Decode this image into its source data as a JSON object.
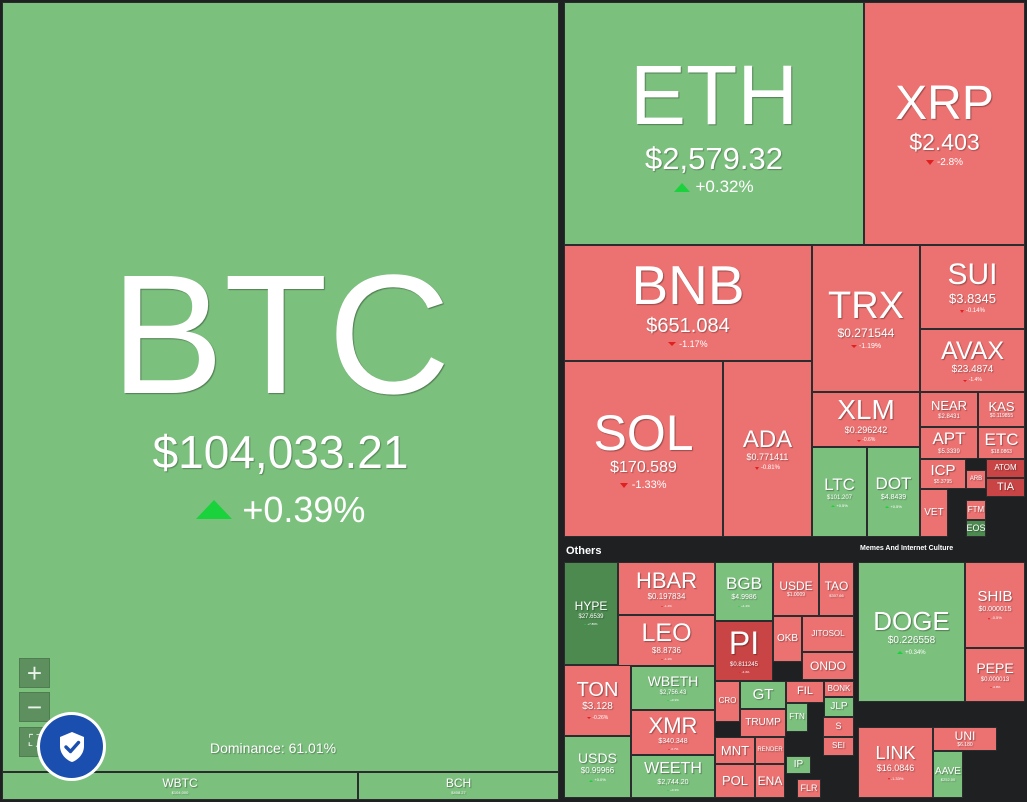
{
  "sections": {
    "others": "Others",
    "memes": "Memes And Internet Culture"
  },
  "dominance": "Dominance: 61.01%",
  "controls": {
    "zoom_in": "+",
    "zoom_out": "−",
    "fullscreen": "⛶"
  },
  "colors": {
    "up": "#7cc07e",
    "down": "#ec7171",
    "strong_up": "#4d8a50",
    "strong_down": "#c94444"
  },
  "tiles": [
    {
      "sym": "BTC",
      "price": "$104,033.21",
      "chg": "+0.39%",
      "dir": "up"
    },
    {
      "sym": "WBTC",
      "price": "$104,000",
      "chg": "",
      "dir": "up"
    },
    {
      "sym": "BCH",
      "price": "$408.27",
      "chg": "",
      "dir": "up"
    },
    {
      "sym": "ETH",
      "price": "$2,579.32",
      "chg": "+0.32%",
      "dir": "up"
    },
    {
      "sym": "XRP",
      "price": "$2.403",
      "chg": "-2.8%",
      "dir": "down"
    },
    {
      "sym": "BNB",
      "price": "$651.084",
      "chg": "-1.17%",
      "dir": "down"
    },
    {
      "sym": "TRX",
      "price": "$0.271544",
      "chg": "-1.19%",
      "dir": "down"
    },
    {
      "sym": "SUI",
      "price": "$3.8345",
      "chg": "-0.14%",
      "dir": "down"
    },
    {
      "sym": "AVAX",
      "price": "$23.4874",
      "chg": "-1.4%",
      "dir": "down"
    },
    {
      "sym": "SOL",
      "price": "$170.589",
      "chg": "-1.33%",
      "dir": "down"
    },
    {
      "sym": "ADA",
      "price": "$0.771411",
      "chg": "-0.81%",
      "dir": "down"
    },
    {
      "sym": "XLM",
      "price": "$0.296242",
      "chg": "-0.6%",
      "dir": "down"
    },
    {
      "sym": "NEAR",
      "price": "$2.8431",
      "chg": "",
      "dir": "down"
    },
    {
      "sym": "KAS",
      "price": "$0.119855",
      "chg": "",
      "dir": "down"
    },
    {
      "sym": "APT",
      "price": "$5.3339",
      "chg": "",
      "dir": "down"
    },
    {
      "sym": "ETC",
      "price": "$18.0863",
      "chg": "",
      "dir": "down"
    },
    {
      "sym": "LTC",
      "price": "$101.207",
      "chg": "+0.5%",
      "dir": "up"
    },
    {
      "sym": "DOT",
      "price": "$4.8439",
      "chg": "+0.5%",
      "dir": "up"
    },
    {
      "sym": "ICP",
      "price": "$5.3795",
      "chg": "",
      "dir": "down"
    },
    {
      "sym": "ARB",
      "price": "",
      "chg": "",
      "dir": "down"
    },
    {
      "sym": "ATOM",
      "price": "$4.8",
      "chg": "",
      "dir": "down"
    },
    {
      "sym": "TIA",
      "price": "",
      "chg": "",
      "dir": "down"
    },
    {
      "sym": "VET",
      "price": "",
      "chg": "",
      "dir": "down"
    },
    {
      "sym": "FTM",
      "price": "",
      "chg": "",
      "dir": "down"
    },
    {
      "sym": "EOS",
      "price": "",
      "chg": "",
      "dir": "up"
    },
    {
      "sym": "HYPE",
      "price": "$27.6539",
      "chg": "+7.86%",
      "dir": "up"
    },
    {
      "sym": "HBAR",
      "price": "$0.197834",
      "chg": "-1.4%",
      "dir": "down"
    },
    {
      "sym": "BGB",
      "price": "$4.9986",
      "chg": "+1.4%",
      "dir": "up"
    },
    {
      "sym": "USDE",
      "price": "$1.0009",
      "chg": "",
      "dir": "down"
    },
    {
      "sym": "TAO",
      "price": "$307.66",
      "chg": "",
      "dir": "down"
    },
    {
      "sym": "LEO",
      "price": "$8.8736",
      "chg": "-1.1%",
      "dir": "down"
    },
    {
      "sym": "PI",
      "price": "$0.811245",
      "chg": "-4.4%",
      "dir": "down"
    },
    {
      "sym": "OKB",
      "price": "",
      "chg": "",
      "dir": "down"
    },
    {
      "sym": "JITOSOL",
      "price": "",
      "chg": "",
      "dir": "down"
    },
    {
      "sym": "ONDO",
      "price": "",
      "chg": "",
      "dir": "down"
    },
    {
      "sym": "TON",
      "price": "$3.128",
      "chg": "-0.26%",
      "dir": "down"
    },
    {
      "sym": "WBETH",
      "price": "$2,756.43",
      "chg": "+0.3%",
      "dir": "up"
    },
    {
      "sym": "GT",
      "price": "",
      "chg": "",
      "dir": "up"
    },
    {
      "sym": "FIL",
      "price": "",
      "chg": "",
      "dir": "down"
    },
    {
      "sym": "BONK",
      "price": "",
      "chg": "",
      "dir": "down"
    },
    {
      "sym": "CRO",
      "price": "",
      "chg": "",
      "dir": "down"
    },
    {
      "sym": "TRUMP",
      "price": "",
      "chg": "",
      "dir": "down"
    },
    {
      "sym": "FTN",
      "price": "",
      "chg": "",
      "dir": "up"
    },
    {
      "sym": "JLP",
      "price": "",
      "chg": "",
      "dir": "up"
    },
    {
      "sym": "XMR",
      "price": "$340.348",
      "chg": "-0.7%",
      "dir": "down"
    },
    {
      "sym": "USDS",
      "price": "$0.99966",
      "chg": "+0.0%",
      "dir": "up"
    },
    {
      "sym": "MNT",
      "price": "",
      "chg": "",
      "dir": "down"
    },
    {
      "sym": "RENDER",
      "price": "",
      "chg": "",
      "dir": "down"
    },
    {
      "sym": "IP",
      "price": "",
      "chg": "",
      "dir": "up"
    },
    {
      "sym": "WEETH",
      "price": "$2,744.20",
      "chg": "+0.3%",
      "dir": "up"
    },
    {
      "sym": "POL",
      "price": "",
      "chg": "",
      "dir": "down"
    },
    {
      "sym": "ENA",
      "price": "",
      "chg": "",
      "dir": "down"
    },
    {
      "sym": "FLR",
      "price": "",
      "chg": "",
      "dir": "down"
    },
    {
      "sym": "DOGE",
      "price": "$0.226558",
      "chg": "+0.34%",
      "dir": "up"
    },
    {
      "sym": "SHIB",
      "price": "$0.000015",
      "chg": "-0.5%",
      "dir": "down"
    },
    {
      "sym": "PEPE",
      "price": "$0.000013",
      "chg": "-0.8%",
      "dir": "down"
    },
    {
      "sym": "LINK",
      "price": "$16.0846",
      "chg": "-1.33%",
      "dir": "down"
    },
    {
      "sym": "UNI",
      "price": "$6.180",
      "chg": "",
      "dir": "down"
    },
    {
      "sym": "AAVE",
      "price": "$252.00",
      "chg": "",
      "dir": "up"
    },
    {
      "sym": "S",
      "price": "",
      "chg": "",
      "dir": "down"
    },
    {
      "sym": "SEI",
      "price": "",
      "chg": "",
      "dir": "down"
    }
  ]
}
